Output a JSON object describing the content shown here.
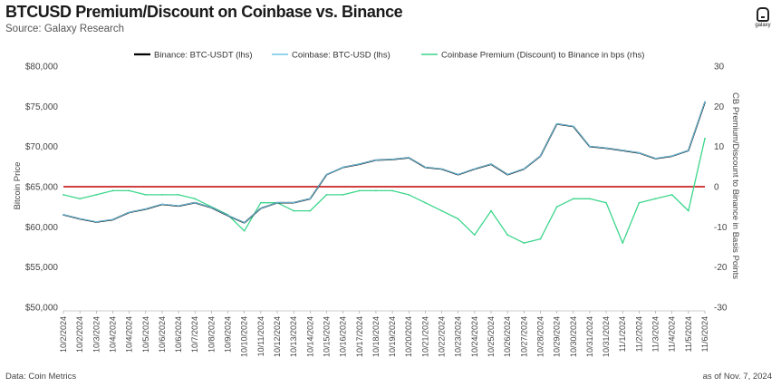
{
  "header": {
    "title": "BTCUSD Premium/Discount on Coinbase vs. Binance",
    "subtitle": "Source: Galaxy Research",
    "logo_text": "galaxy"
  },
  "footer": {
    "data_source": "Data: Coin Metrics",
    "as_of": "as of Nov. 7, 2024"
  },
  "colors": {
    "binance": "#000000",
    "coinbase": "#6ec6e6",
    "premium": "#3dd68c",
    "zero_line": "#c00000",
    "text": "#444444"
  },
  "chart_data": {
    "type": "line",
    "title": "BTCUSD Premium/Discount on Coinbase vs. Binance",
    "ylabel": "Bitcoin Price",
    "y2label": "CB Premium/Discount to Binance in Basis Points",
    "ylim": [
      50000,
      80000
    ],
    "y2lim": [
      -30,
      30
    ],
    "yticks": [
      "$50,000",
      "$55,000",
      "$60,000",
      "$65,000",
      "$70,000",
      "$75,000",
      "$80,000"
    ],
    "yticks_values": [
      50000,
      55000,
      60000,
      65000,
      70000,
      75000,
      80000
    ],
    "y2ticks": [
      "-30",
      "-20",
      "-10",
      "0",
      "10",
      "20",
      "30"
    ],
    "y2ticks_values": [
      -30,
      -20,
      -10,
      0,
      10,
      20,
      30
    ],
    "categories": [
      "10/2/2024",
      "10/2/2024",
      "10/3/2024",
      "10/4/2024",
      "10/4/2024",
      "10/5/2024",
      "10/6/2024",
      "10/6/2024",
      "10/7/2024",
      "10/8/2024",
      "10/9/2024",
      "10/10/2024",
      "10/11/2024",
      "10/12/2024",
      "10/13/2024",
      "10/14/2024",
      "10/15/2024",
      "10/16/2024",
      "10/17/2024",
      "10/18/2024",
      "10/19/2024",
      "10/20/2024",
      "10/21/2024",
      "10/22/2024",
      "10/23/2024",
      "10/24/2024",
      "10/25/2024",
      "10/26/2024",
      "10/27/2024",
      "10/28/2024",
      "10/29/2024",
      "10/30/2024",
      "10/31/2024",
      "10/31/2024",
      "11/1/2024",
      "11/2/2024",
      "11/3/2024",
      "11/4/2024",
      "11/5/2024",
      "11/6/2024"
    ],
    "legend": [
      "Binance: BTC-USDT (lhs)",
      "Coinbase: BTC-USD (lhs)",
      "Coinbase Premium (Discount) to Binance in bps (rhs)"
    ],
    "legend_position": "top",
    "zero_line_rhs": 0,
    "series": [
      {
        "name": "Binance: BTC-USDT (lhs)",
        "axis": "left",
        "values": [
          61500,
          61000,
          60600,
          60900,
          61800,
          62200,
          62800,
          62600,
          63000,
          62400,
          61400,
          60500,
          62300,
          63000,
          63000,
          63500,
          66500,
          67400,
          67800,
          68300,
          68400,
          68600,
          67400,
          67200,
          66500,
          67200,
          67800,
          66500,
          67200,
          68800,
          72800,
          72500,
          70000,
          69800,
          69500,
          69200,
          68500,
          68800,
          69500,
          75500
        ]
      },
      {
        "name": "Coinbase: BTC-USD (lhs)",
        "axis": "left",
        "values": [
          61520,
          61020,
          60620,
          60920,
          61820,
          62220,
          62820,
          62620,
          63020,
          62420,
          61420,
          60520,
          62320,
          63020,
          63020,
          63520,
          66520,
          67420,
          67820,
          68320,
          68420,
          68620,
          67420,
          67220,
          66520,
          67220,
          67820,
          66520,
          67220,
          68820,
          72820,
          72520,
          70020,
          69820,
          69520,
          69220,
          68520,
          68820,
          69520,
          75560
        ]
      },
      {
        "name": "Coinbase Premium (Discount) to Binance in bps (rhs)",
        "axis": "right",
        "values": [
          -2,
          -3,
          -2,
          -1,
          -1,
          -2,
          -2,
          -2,
          -3,
          -5,
          -7,
          -11,
          -4,
          -4,
          -6,
          -6,
          -2,
          -2,
          -1,
          -1,
          -1,
          -2,
          -4,
          -6,
          -8,
          -12,
          -6,
          -12,
          -14,
          -13,
          -5,
          -3,
          -3,
          -4,
          -14,
          -4,
          -3,
          -2,
          -6,
          12
        ]
      }
    ]
  }
}
